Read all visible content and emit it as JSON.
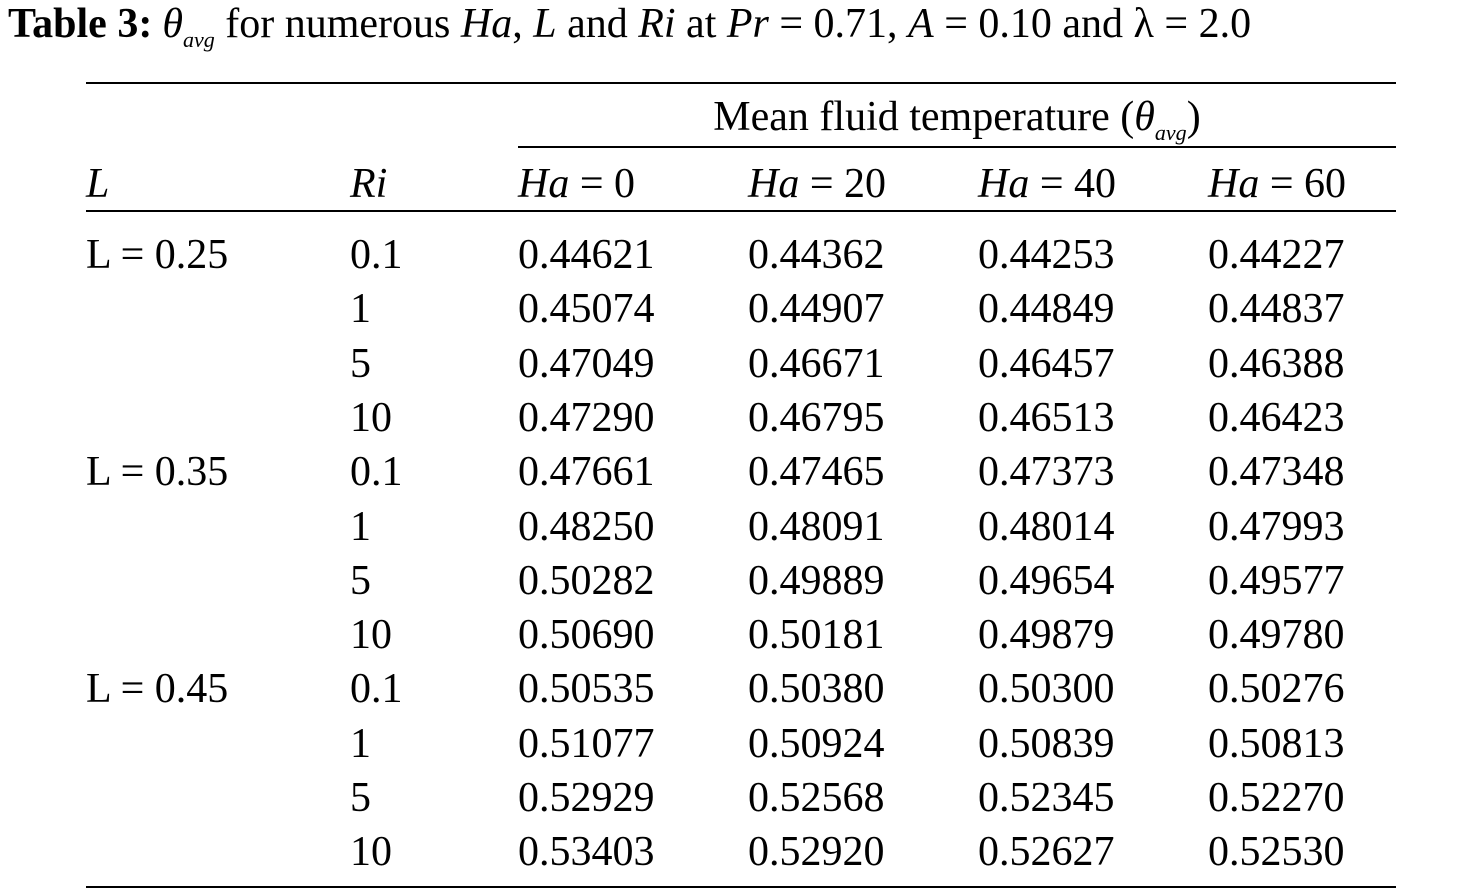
{
  "caption": {
    "lead": "Table 3:",
    "theta": "θ",
    "theta_sub": "avg",
    "text_1": " for numerous ",
    "ha": "Ha",
    "text_2": ", ",
    "l": "L",
    "text_3": " and ",
    "ri": "Ri",
    "text_4": " at ",
    "pr": "Pr",
    "text_5": " = 0.71, ",
    "a": "A",
    "text_6": " = 0.10 and λ = 2.0"
  },
  "group_header": {
    "text": "Mean fluid temperature (",
    "theta": "θ",
    "theta_sub": "avg",
    "close": ")"
  },
  "columns": {
    "L": "L",
    "Ri": "Ri",
    "ha_symbol": "Ha",
    "ha_values": [
      "= 0",
      "= 20",
      "= 40",
      "= 60"
    ]
  },
  "rows": [
    {
      "L": "L = 0.25",
      "Ri": "0.1",
      "values": [
        "0.44621",
        "0.44362",
        "0.44253",
        "0.44227"
      ]
    },
    {
      "L": "",
      "Ri": "1",
      "values": [
        "0.45074",
        "0.44907",
        "0.44849",
        "0.44837"
      ]
    },
    {
      "L": "",
      "Ri": "5",
      "values": [
        "0.47049",
        "0.46671",
        "0.46457",
        "0.46388"
      ]
    },
    {
      "L": "",
      "Ri": "10",
      "values": [
        "0.47290",
        "0.46795",
        "0.46513",
        "0.46423"
      ]
    },
    {
      "L": "L = 0.35",
      "Ri": "0.1",
      "values": [
        "0.47661",
        "0.47465",
        "0.47373",
        "0.47348"
      ]
    },
    {
      "L": "",
      "Ri": "1",
      "values": [
        "0.48250",
        "0.48091",
        "0.48014",
        "0.47993"
      ]
    },
    {
      "L": "",
      "Ri": "5",
      "values": [
        "0.50282",
        "0.49889",
        "0.49654",
        "0.49577"
      ]
    },
    {
      "L": "",
      "Ri": "10",
      "values": [
        "0.50690",
        "0.50181",
        "0.49879",
        "0.49780"
      ]
    },
    {
      "L": "L = 0.45",
      "Ri": "0.1",
      "values": [
        "0.50535",
        "0.50380",
        "0.50300",
        "0.50276"
      ]
    },
    {
      "L": "",
      "Ri": "1",
      "values": [
        "0.51077",
        "0.50924",
        "0.50839",
        "0.50813"
      ]
    },
    {
      "L": "",
      "Ri": "5",
      "values": [
        "0.52929",
        "0.52568",
        "0.52345",
        "0.52270"
      ]
    },
    {
      "L": "",
      "Ri": "10",
      "values": [
        "0.53403",
        "0.52920",
        "0.52627",
        "0.52530"
      ]
    }
  ]
}
